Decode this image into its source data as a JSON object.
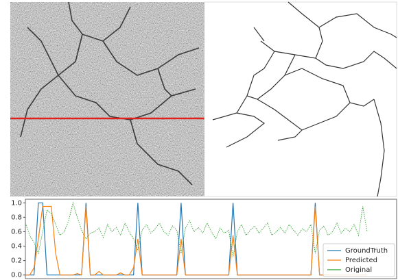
{
  "chart_data": {
    "type": "line",
    "series": [
      {
        "name": "GroundTruth",
        "color": "#1f77b4",
        "style": "solid",
        "values": [
          0,
          0,
          0,
          1,
          1,
          0,
          0,
          0,
          0,
          0,
          0,
          0,
          0,
          0,
          1,
          0,
          0,
          0,
          0,
          0,
          0,
          0,
          0,
          0,
          0,
          0,
          1,
          0,
          0,
          0,
          0,
          0,
          0,
          0,
          0,
          0,
          1,
          0,
          0,
          0,
          0,
          0,
          0,
          0,
          0,
          0,
          0,
          0,
          1,
          0,
          0,
          0,
          0,
          0,
          0,
          0,
          0,
          0,
          0,
          0,
          0,
          0,
          0,
          0,
          0,
          0,
          0,
          1,
          0,
          0,
          0,
          0,
          0,
          0,
          0,
          0,
          0,
          0,
          0,
          0
        ]
      },
      {
        "name": "Predicted",
        "color": "#ff7f0e",
        "style": "solid",
        "values": [
          0,
          0,
          0.1,
          0.5,
          0.95,
          0.95,
          0.95,
          0.3,
          0,
          0,
          0,
          0,
          0.02,
          0,
          0.95,
          0,
          0,
          0.05,
          0,
          0,
          0,
          0,
          0.03,
          0,
          0,
          0.1,
          0.5,
          0,
          0,
          0,
          0,
          0,
          0,
          0,
          0,
          0,
          0.5,
          0,
          0,
          0,
          0,
          0,
          0,
          0,
          0,
          0,
          0,
          0,
          0.55,
          0,
          0,
          0,
          0,
          0,
          0,
          0,
          0,
          0,
          0,
          0,
          0,
          0,
          0,
          0,
          0,
          0,
          0,
          0.95,
          0,
          0,
          0,
          0,
          0,
          0,
          0,
          0,
          0,
          0,
          0,
          0
        ]
      },
      {
        "name": "Original",
        "color": "#2ca02c",
        "style": "dotted",
        "values": [
          0.72,
          0.55,
          0.45,
          0.3,
          0.6,
          0.9,
          0.85,
          0.7,
          0.55,
          0.6,
          0.75,
          1.0,
          0.8,
          0.62,
          0.5,
          0.58,
          0.6,
          0.65,
          0.52,
          0.7,
          0.6,
          0.66,
          0.55,
          0.72,
          0.6,
          0.5,
          0.35,
          0.62,
          0.7,
          0.58,
          0.64,
          0.72,
          0.6,
          0.55,
          0.68,
          0.62,
          0.3,
          0.65,
          0.75,
          0.6,
          0.66,
          0.58,
          0.72,
          0.6,
          0.5,
          0.65,
          0.58,
          0.62,
          0.25,
          0.6,
          0.7,
          0.55,
          0.62,
          0.68,
          0.58,
          0.65,
          0.72,
          0.55,
          0.6,
          0.66,
          0.58,
          0.7,
          0.62,
          0.55,
          0.64,
          0.6,
          0.7,
          0.3,
          0.62,
          0.68,
          0.55,
          0.6,
          0.72,
          0.58,
          0.65,
          0.6,
          0.7,
          0.55,
          0.95,
          0.6
        ]
      }
    ],
    "ylim": [
      -0.05,
      1.05
    ],
    "yticks": [
      {
        "value": 0,
        "label": "0.0"
      },
      {
        "value": 0.2,
        "label": "0.2"
      },
      {
        "value": 0.4,
        "label": "0.4"
      },
      {
        "value": 0.6,
        "label": "0.6"
      },
      {
        "value": 0.8,
        "label": "0.8"
      },
      {
        "value": 1,
        "label": "1.0"
      }
    ],
    "legend": "lower right"
  }
}
